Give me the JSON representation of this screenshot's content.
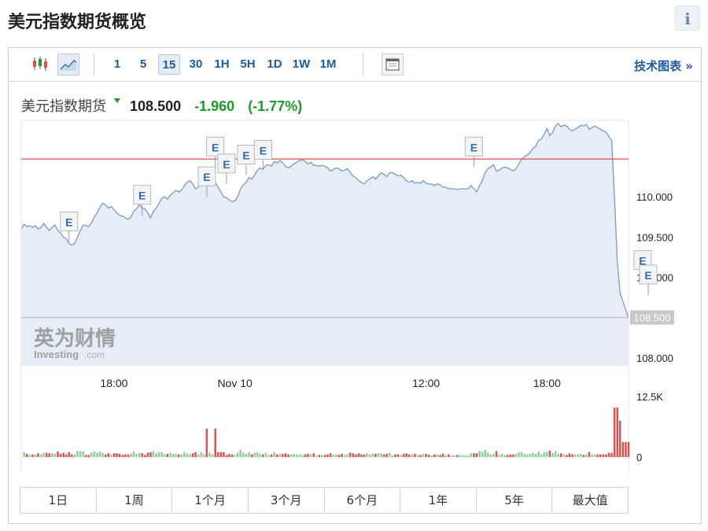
{
  "page": {
    "title": "美元指数期货概览",
    "info_icon": "info-icon",
    "info_label": "i"
  },
  "toolbar": {
    "candlestick_icon": "candlestick-icon",
    "area_icon": "area-chart-icon",
    "settings_icon": "panel-icon",
    "intervals": [
      "1",
      "5",
      "15",
      "30",
      "1H",
      "5H",
      "1D",
      "1W",
      "1M"
    ],
    "active_interval": "15",
    "tech_link": "技术图表 »"
  },
  "quote": {
    "name": "美元指数期货",
    "price": "108.500",
    "change": "-1.960",
    "change_pct": "(-1.77%)",
    "arrow_color": "#1a9b2c"
  },
  "watermark": {
    "brand_cn": "英为财情",
    "brand_en": "Investing",
    "brand_suffix": ".com"
  },
  "ranges": [
    "1日",
    "1周",
    "1个月",
    "3个月",
    "6个月",
    "1年",
    "5年",
    "最大值"
  ],
  "colors": {
    "line": "#7a9ac0",
    "area": "#e6edf6",
    "ref_line": "#d9534f",
    "vol_up": "#8ccf9a",
    "vol_down": "#d9534f",
    "axis_text": "#222222",
    "last_price_bg": "#c8c8c8"
  },
  "chart_data": {
    "type": "area",
    "price_axis": {
      "ticks": [
        108.0,
        108.5,
        109.0,
        109.5,
        110.0
      ],
      "tick_labels": [
        "108.000",
        "108.500",
        "109.000",
        "109.500",
        "110.000"
      ],
      "range": [
        108.0,
        110.95
      ]
    },
    "time_axis": {
      "labels": [
        "18:00",
        "Nov 10",
        "12:00",
        "18:00"
      ],
      "label_idx": [
        33,
        76,
        144,
        187
      ]
    },
    "reference_line": 110.47,
    "last_price": 108.5,
    "last_price_label": "108.500",
    "series": [
      {
        "values": [
          109.6,
          109.66,
          109.63,
          109.64,
          109.62,
          109.64,
          109.6,
          109.62,
          109.67,
          109.62,
          109.58,
          109.62,
          109.65,
          109.58,
          109.55,
          109.5,
          109.48,
          109.42,
          109.4,
          109.42,
          109.5,
          109.58,
          109.65,
          109.64,
          109.63,
          109.68,
          109.75,
          109.8,
          109.87,
          109.92,
          109.9,
          109.86,
          109.88,
          109.84,
          109.8,
          109.77,
          109.76,
          109.74,
          109.72,
          109.75,
          109.82,
          109.85,
          109.9,
          109.86,
          109.85,
          109.8,
          109.74,
          109.82,
          109.86,
          109.92,
          109.98,
          110.0,
          109.97,
          110.02,
          110.05,
          110.08,
          110.06,
          110.08,
          110.14,
          110.18,
          110.2,
          110.16,
          110.1,
          110.12,
          110.18,
          110.2,
          110.17,
          110.22,
          110.24,
          110.18,
          110.12,
          110.06,
          110.0,
          109.99,
          109.96,
          109.94,
          109.95,
          110.0,
          110.1,
          110.15,
          110.18,
          110.24,
          110.22,
          110.27,
          110.33,
          110.36,
          110.34,
          110.39,
          110.4,
          110.38,
          110.44,
          110.42,
          110.45,
          110.42,
          110.38,
          110.36,
          110.38,
          110.41,
          110.43,
          110.45,
          110.46,
          110.44,
          110.41,
          110.43,
          110.39,
          110.39,
          110.38,
          110.39,
          110.38,
          110.36,
          110.32,
          110.34,
          110.36,
          110.35,
          110.32,
          110.33,
          110.35,
          110.3,
          110.26,
          110.24,
          110.2,
          110.18,
          110.16,
          110.2,
          110.22,
          110.25,
          110.22,
          110.26,
          110.3,
          110.28,
          110.25,
          110.3,
          110.3,
          110.28,
          110.26,
          110.27,
          110.24,
          110.2,
          110.18,
          110.2,
          110.17,
          110.18,
          110.17,
          110.2,
          110.17,
          110.16,
          110.16,
          110.14,
          110.16,
          110.15,
          110.12,
          110.12,
          110.1,
          110.1,
          110.1,
          110.09,
          110.1,
          110.1,
          110.1,
          110.1,
          110.14,
          110.1,
          110.06,
          110.14,
          110.2,
          110.3,
          110.35,
          110.37,
          110.4,
          110.32,
          110.33,
          110.36,
          110.37,
          110.36,
          110.34,
          110.32,
          110.35,
          110.41,
          110.47,
          110.5,
          110.52,
          110.55,
          110.6,
          110.63,
          110.7,
          110.72,
          110.78,
          110.85,
          110.76,
          110.8,
          110.88,
          110.91,
          110.87,
          110.89,
          110.88,
          110.84,
          110.82,
          110.84,
          110.86,
          110.89,
          110.88,
          110.9,
          110.84,
          110.86,
          110.88,
          110.86,
          110.84,
          110.82,
          110.8,
          110.75,
          110.7,
          110.0,
          109.2,
          108.8,
          108.7,
          108.6,
          108.5
        ]
      },
      {
        "name": "volume",
        "range": [
          0,
          12500
        ],
        "axis_labels": [
          "12.5K",
          "0"
        ]
      }
    ],
    "event_markers": [
      {
        "label": "E",
        "idx": 17,
        "value": 109.44
      },
      {
        "label": "E",
        "idx": 43,
        "value": 109.77
      },
      {
        "label": "E",
        "idx": 66,
        "value": 110.0
      },
      {
        "label": "E",
        "idx": 69,
        "value": 110.37
      },
      {
        "label": "E",
        "idx": 73,
        "value": 110.16
      },
      {
        "label": "E",
        "idx": 80,
        "value": 110.27
      },
      {
        "label": "E",
        "idx": 86,
        "value": 110.33
      },
      {
        "label": "E",
        "idx": 161,
        "value": 110.37
      },
      {
        "label": "E",
        "idx": 221,
        "value": 108.96
      },
      {
        "label": "E",
        "idx": 223,
        "value": 108.78
      }
    ]
  }
}
